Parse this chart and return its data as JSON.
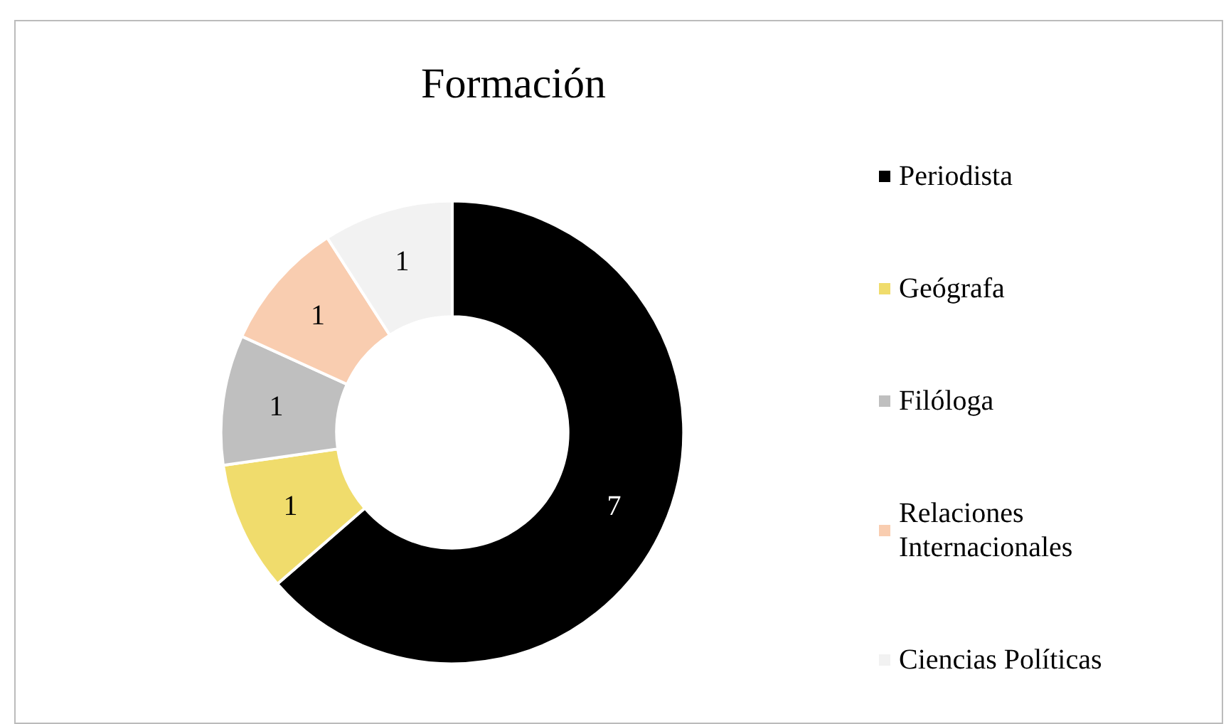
{
  "chart_data": {
    "type": "donut",
    "title": "Formación",
    "categories": [
      "Periodista",
      "Geógrafa",
      "Filóloga",
      "Relaciones Internacionales",
      "Ciencias Políticas"
    ],
    "values": [
      7,
      1,
      1,
      1,
      1
    ],
    "colors": [
      "#000000",
      "#f0dc6c",
      "#bfbfbf",
      "#f9cdb0",
      "#f2f2f2"
    ],
    "data_labels": true,
    "legend": "right"
  }
}
